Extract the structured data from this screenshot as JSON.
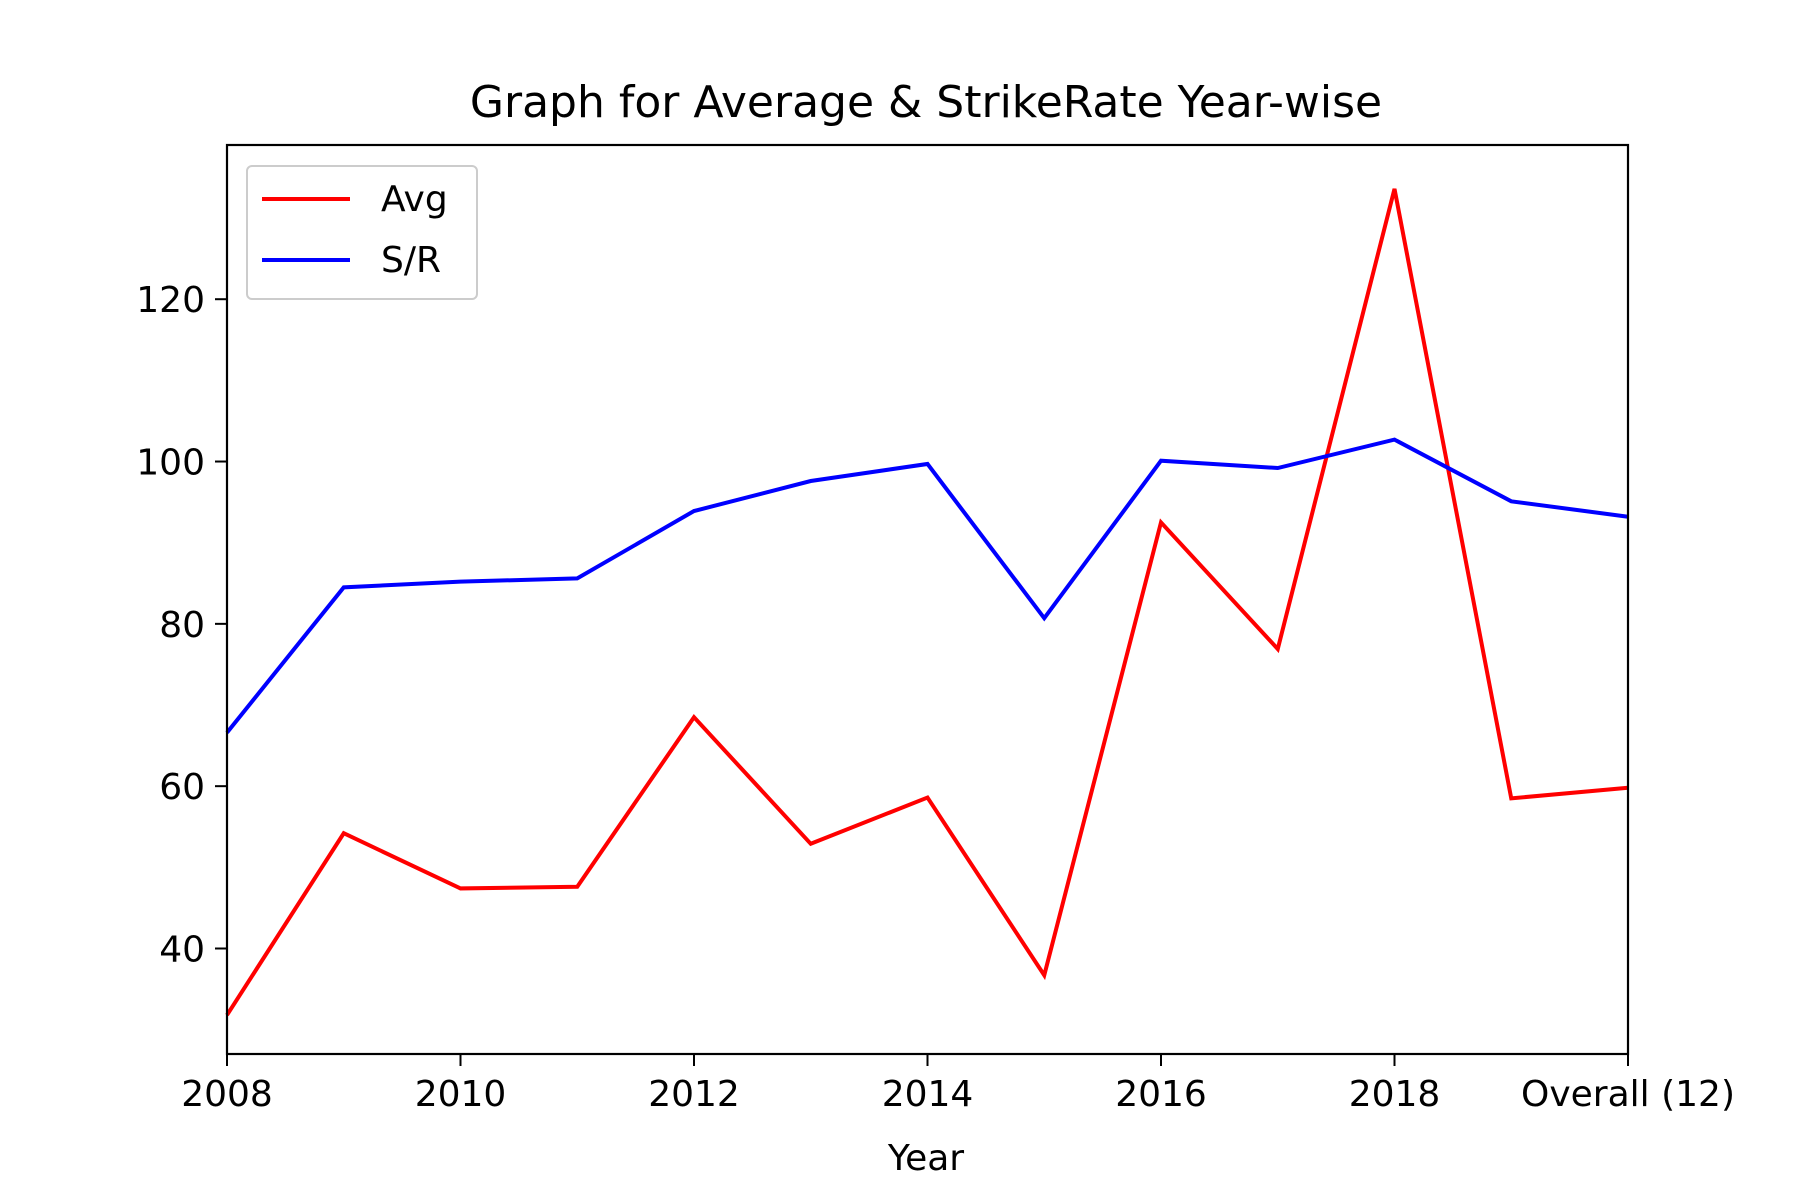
{
  "chart_data": {
    "type": "line",
    "title": "Graph for Average & StrikeRate Year-wise",
    "xlabel": "Year",
    "ylabel": "",
    "x": [
      2008,
      2009,
      2010,
      2011,
      2012,
      2013,
      2014,
      2015,
      2016,
      2017,
      2018,
      2019,
      2020
    ],
    "x_tick_values": [
      2008,
      2010,
      2012,
      2014,
      2016,
      2018,
      2020
    ],
    "x_tick_labels": [
      "2008",
      "2010",
      "2012",
      "2014",
      "2016",
      "2018",
      "Overall (12)"
    ],
    "xlim": [
      2008,
      2020
    ],
    "ylim": [
      27,
      139
    ],
    "y_ticks": [
      40,
      60,
      80,
      100,
      120
    ],
    "grid": false,
    "legend_position": "top-left",
    "series": [
      {
        "name": "Avg",
        "color": "#ff0000",
        "values": [
          31.8,
          54.2,
          47.4,
          47.6,
          68.5,
          52.9,
          58.6,
          36.7,
          92.5,
          76.9,
          133.6,
          58.5,
          59.8
        ]
      },
      {
        "name": "S/R",
        "color": "#0000ff",
        "values": [
          66.6,
          84.5,
          85.2,
          85.6,
          93.9,
          97.6,
          99.7,
          80.7,
          100.1,
          99.2,
          102.7,
          95.1,
          93.2
        ]
      }
    ]
  }
}
